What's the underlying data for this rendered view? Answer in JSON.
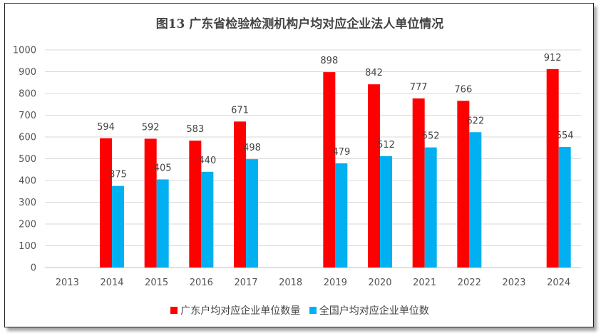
{
  "chart_data": {
    "type": "bar",
    "title": "图13 广东省检验检测机构户均对应企业法人单位情况",
    "categories": [
      "2013",
      "2014",
      "2015",
      "2016",
      "2017",
      "2018",
      "2019",
      "2020",
      "2021",
      "2022",
      "2023",
      "2024"
    ],
    "series": [
      {
        "name": "广东户均对应企业单位数量",
        "color": "#ff0000",
        "values": [
          null,
          594,
          592,
          583,
          671,
          null,
          898,
          842,
          777,
          766,
          null,
          912
        ]
      },
      {
        "name": "全国户均对应企业单位数",
        "color": "#00b0f0",
        "values": [
          null,
          375,
          405,
          440,
          498,
          null,
          479,
          512,
          552,
          622,
          null,
          554
        ]
      }
    ],
    "ylim": [
      0,
      1000
    ],
    "yticks": [
      0,
      100,
      200,
      300,
      400,
      500,
      600,
      700,
      800,
      900,
      1000
    ],
    "grid": true,
    "legend": "bottom"
  }
}
